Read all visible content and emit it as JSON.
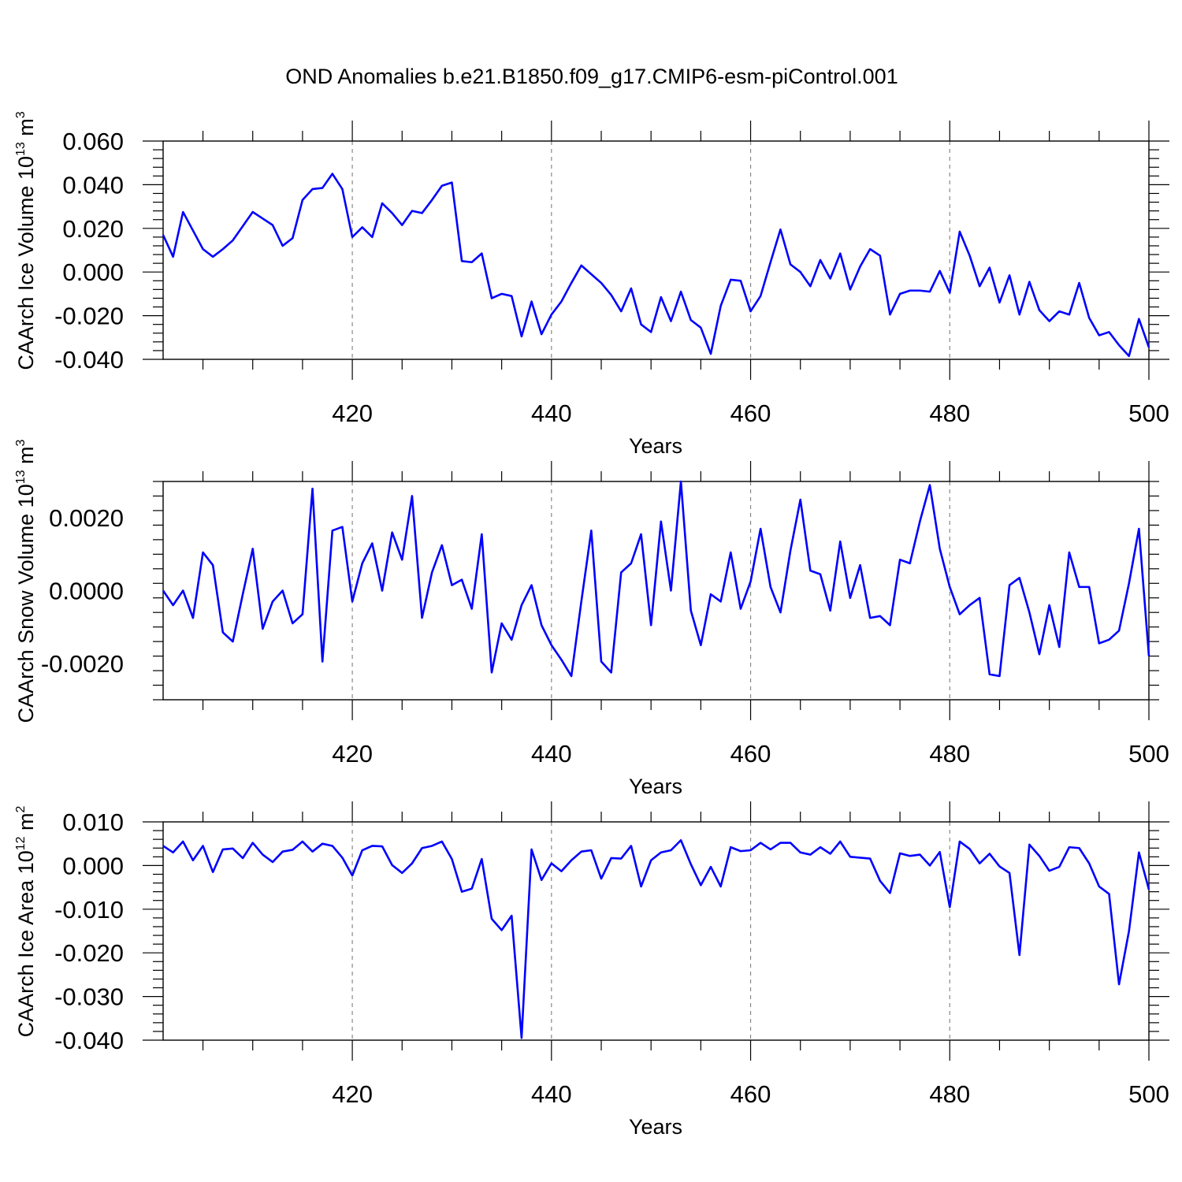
{
  "figure_title": "OND Anomalies b.e21.B1850.f09_g17.CMIP6-esm-piControl.001",
  "series_color": "#0000ff",
  "chart_data": [
    {
      "type": "line",
      "title": "OND Anomalies b.e21.B1850.f09_g17.CMIP6-esm-piControl.001",
      "xlabel": "Years",
      "ylabel": "CAArch Ice Volume 10",
      "ylabel_exp": "13",
      "ylabel_unit": " m",
      "ylabel_unit_exp": "3",
      "xlim": [
        401,
        500
      ],
      "ylim": [
        -0.04,
        0.06
      ],
      "yticks": [
        -0.04,
        -0.02,
        0.0,
        0.02,
        0.04,
        0.06
      ],
      "ytick_labels": [
        "-0.040",
        "-0.020",
        "0.000",
        "0.020",
        "0.040",
        "0.060"
      ],
      "xticks": [
        420,
        440,
        460,
        480,
        500
      ],
      "xtick_labels": [
        "420",
        "440",
        "460",
        "480",
        "500"
      ],
      "x_start": 401,
      "values": [
        0.017,
        0.007,
        0.0275,
        0.019,
        0.0105,
        0.007,
        0.0105,
        0.0145,
        0.021,
        0.0275,
        0.0245,
        0.0215,
        0.012,
        0.0155,
        0.033,
        0.038,
        0.0385,
        0.045,
        0.038,
        0.016,
        0.0205,
        0.016,
        0.0315,
        0.027,
        0.0215,
        0.028,
        0.027,
        0.033,
        0.0395,
        0.041,
        0.005,
        0.0045,
        0.0085,
        -0.012,
        -0.01,
        -0.011,
        -0.0295,
        -0.0135,
        -0.0285,
        -0.0195,
        -0.0135,
        -0.005,
        0.003,
        -0.001,
        -0.005,
        -0.0105,
        -0.018,
        -0.0075,
        -0.024,
        -0.0275,
        -0.0115,
        -0.0225,
        -0.009,
        -0.022,
        -0.0255,
        -0.0375,
        -0.0155,
        -0.0035,
        -0.004,
        -0.018,
        -0.011,
        0.0045,
        0.0195,
        0.0035,
        0.0,
        -0.0065,
        0.0055,
        -0.003,
        0.0085,
        -0.008,
        0.0025,
        0.0105,
        0.0075,
        -0.0195,
        -0.01,
        -0.0085,
        -0.0085,
        -0.009,
        0.0005,
        -0.0095,
        0.0185,
        0.0075,
        -0.0065,
        0.002,
        -0.014,
        -0.0015,
        -0.0195,
        -0.0045,
        -0.0175,
        -0.0225,
        -0.018,
        -0.0195,
        -0.005,
        -0.021,
        -0.029,
        -0.0275,
        -0.0335,
        -0.0385,
        -0.0215,
        -0.0345
      ]
    },
    {
      "type": "line",
      "xlabel": "Years",
      "ylabel": "CAArch Snow Volume 10",
      "ylabel_exp": "13",
      "ylabel_unit": " m",
      "ylabel_unit_exp": "3",
      "xlim": [
        401,
        500
      ],
      "ylim": [
        -0.003,
        0.003
      ],
      "yticks": [
        -0.002,
        0.0,
        0.002
      ],
      "ytick_labels": [
        "-0.0020",
        "0.0000",
        "0.0020"
      ],
      "xticks": [
        420,
        440,
        460,
        480,
        500
      ],
      "xtick_labels": [
        "420",
        "440",
        "460",
        "480",
        "500"
      ],
      "x_start": 401,
      "values": [
        0.0,
        -0.0004,
        0.0,
        -0.00075,
        0.00105,
        0.0007,
        -0.00115,
        -0.0014,
        -0.0001,
        0.00115,
        -0.00105,
        -0.0003,
        0.0,
        -0.0009,
        -0.00065,
        0.0028,
        -0.00195,
        0.00165,
        0.00175,
        -0.0003,
        0.00075,
        0.0013,
        0.0,
        0.0016,
        0.00085,
        0.0026,
        -0.00075,
        0.0005,
        0.00125,
        0.00015,
        0.0003,
        -0.0005,
        0.00155,
        -0.00225,
        -0.0009,
        -0.00135,
        -0.0004,
        0.00015,
        -0.00095,
        -0.0015,
        -0.0019,
        -0.00235,
        -0.0003,
        0.00165,
        -0.00195,
        -0.00225,
        0.0005,
        0.00075,
        0.00155,
        -0.00095,
        0.0019,
        0.0,
        0.003,
        -0.00055,
        -0.0015,
        -0.0001,
        -0.0003,
        0.00105,
        -0.0005,
        0.00025,
        0.0017,
        0.0001,
        -0.0006,
        0.0011,
        0.0025,
        0.00055,
        0.00045,
        -0.00055,
        0.00135,
        -0.0002,
        0.0007,
        -0.00075,
        -0.0007,
        -0.00095,
        0.00085,
        0.00075,
        0.0019,
        0.0029,
        0.00115,
        0.0001,
        -0.00065,
        -0.0004,
        -0.0002,
        -0.0023,
        -0.00235,
        0.00015,
        0.00035,
        -0.0006,
        -0.00175,
        -0.0004,
        -0.00155,
        0.00105,
        0.0001,
        0.0001,
        -0.00145,
        -0.00135,
        -0.0011,
        0.0002,
        0.0017,
        -0.0018
      ]
    },
    {
      "type": "line",
      "xlabel": "Years",
      "ylabel": "CAArch Ice Area 10",
      "ylabel_exp": "12",
      "ylabel_unit": " m",
      "ylabel_unit_exp": "2",
      "xlim": [
        401,
        500
      ],
      "ylim": [
        -0.04,
        0.01
      ],
      "yticks": [
        -0.04,
        -0.03,
        -0.02,
        -0.01,
        0.0,
        0.01
      ],
      "ytick_labels": [
        "-0.040",
        "-0.030",
        "-0.020",
        "-0.010",
        "0.000",
        "0.010"
      ],
      "xticks": [
        420,
        440,
        460,
        480,
        500
      ],
      "xtick_labels": [
        "420",
        "440",
        "460",
        "480",
        "500"
      ],
      "x_start": 401,
      "values": [
        0.0045,
        0.003,
        0.0055,
        0.0012,
        0.0045,
        -0.0015,
        0.0037,
        0.0039,
        0.0017,
        0.0052,
        0.0025,
        0.0008,
        0.0032,
        0.0036,
        0.0055,
        0.0032,
        0.005,
        0.0045,
        0.0018,
        -0.0023,
        0.0035,
        0.0045,
        0.0044,
        0.0001,
        -0.0017,
        0.0005,
        0.004,
        0.0045,
        0.0055,
        0.0015,
        -0.006,
        -0.0053,
        0.0015,
        -0.0122,
        -0.0148,
        -0.0115,
        -0.0395,
        0.0037,
        -0.0033,
        0.0005,
        -0.0013,
        0.0012,
        0.0032,
        0.0035,
        -0.003,
        0.0017,
        0.0016,
        0.0045,
        -0.0048,
        0.0012,
        0.003,
        0.0035,
        0.0058,
        0.0003,
        -0.0045,
        -0.0003,
        -0.0048,
        0.0042,
        0.0033,
        0.0035,
        0.0052,
        0.0037,
        0.0052,
        0.0052,
        0.003,
        0.0025,
        0.0042,
        0.0027,
        0.0055,
        0.002,
        0.0018,
        0.0016,
        -0.0035,
        -0.0063,
        0.0028,
        0.0022,
        0.0025,
        0.0,
        0.0031,
        -0.0095,
        0.0055,
        0.0038,
        0.0005,
        0.0027,
        -0.0002,
        -0.0017,
        -0.0205,
        0.0048,
        0.0022,
        -0.0012,
        -0.0003,
        0.0042,
        0.004,
        0.0005,
        -0.0048,
        -0.0065,
        -0.0272,
        -0.015,
        0.003,
        -0.0055
      ]
    }
  ]
}
